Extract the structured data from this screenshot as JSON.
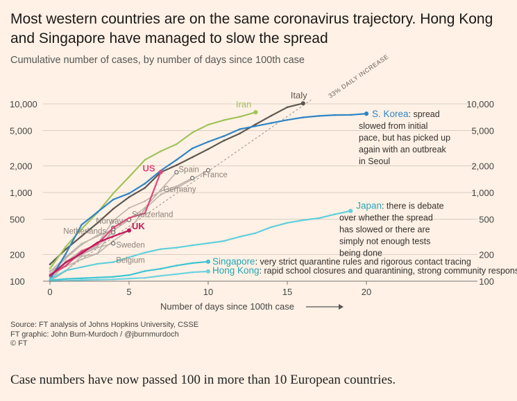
{
  "title": "Most western countries are on the same coronavirus trajectory. Hong Kong and Singapore have managed to slow the spread",
  "subtitle": "Cumulative number of cases, by number of days since 100th case",
  "source": {
    "line1": "Source: FT analysis of Johns Hopkins University, CSSE",
    "line2": "FT graphic: John Burn-Murdoch / @jburnmurdoch",
    "line3": "© FT"
  },
  "caption": "Case numbers have now passed 100 in more than 10 European countries.",
  "colors": {
    "background": "#fff1e5",
    "grid": "#d9cdc2",
    "iran": "#a0c35a",
    "italy": "#5e5650",
    "skorea": "#2d84c6",
    "us": "#e0457b",
    "uk": "#c2185b",
    "japan": "#5fcfdc",
    "singapore": "#3ec4d2",
    "hongkong": "#6fd3df",
    "grey": "#bdb3ab",
    "guide": "#9a8f87"
  },
  "chart_data": {
    "type": "line",
    "title": "Cumulative number of cases, by number of days since 100th case",
    "xlabel": "Number of days since 100th case",
    "ylabel": "",
    "xlim": [
      0,
      27
    ],
    "ylim": [
      100,
      13000
    ],
    "yscale": "log",
    "x_ticks": [
      0,
      5,
      10,
      15,
      20
    ],
    "x_tick_labels": [
      "0",
      "5",
      "10",
      "15",
      "20"
    ],
    "y_ticks": [
      100,
      200,
      500,
      1000,
      2000,
      5000,
      10000
    ],
    "y_tick_labels": [
      "100",
      "200",
      "500",
      "1,000",
      "2,000",
      "5,000",
      "10,000"
    ],
    "guide": {
      "label": "33% DAILY INCREASE",
      "rate": 1.33,
      "x": [
        0,
        16.5
      ]
    },
    "series": [
      {
        "name": "Italy",
        "key": "italy",
        "label": "Italy",
        "highlight": true,
        "x": [
          0,
          1,
          2,
          3,
          4,
          5,
          6,
          7,
          8,
          9,
          10,
          11,
          12,
          13,
          14,
          15,
          16
        ],
        "values": [
          155,
          229,
          322,
          453,
          655,
          888,
          1128,
          1694,
          2036,
          2502,
          3089,
          3858,
          4636,
          5883,
          7375,
          9172,
          10149
        ]
      },
      {
        "name": "Iran",
        "key": "iran",
        "label": "Iran",
        "highlight": true,
        "x": [
          0,
          1,
          2,
          3,
          4,
          5,
          6,
          7,
          8,
          9,
          10,
          11,
          12,
          13
        ],
        "values": [
          139,
          245,
          388,
          593,
          978,
          1501,
          2336,
          2922,
          3513,
          4747,
          5823,
          6566,
          7161,
          8042
        ]
      },
      {
        "name": "S. Korea",
        "key": "skorea",
        "label": "S. Korea",
        "highlight": true,
        "note": ": spread slowed from initial pace, but has picked up again with an outbreak in Seoul",
        "x": [
          0,
          1,
          2,
          3,
          4,
          5,
          6,
          7,
          8,
          9,
          10,
          11,
          12,
          13,
          14,
          15,
          16,
          17,
          18,
          19,
          20
        ],
        "values": [
          104,
          204,
          433,
          602,
          833,
          977,
          1261,
          1766,
          2337,
          3150,
          3736,
          4335,
          5186,
          5621,
          6088,
          6593,
          7041,
          7314,
          7478,
          7513,
          7755
        ]
      },
      {
        "name": "US",
        "key": "us",
        "label": "US",
        "highlight": true,
        "x": [
          0,
          1,
          2,
          3,
          4,
          5,
          6,
          7
        ],
        "values": [
          118,
          149,
          217,
          262,
          402,
          518,
          583,
          1700
        ]
      },
      {
        "name": "UK",
        "key": "uk",
        "label": "UK",
        "highlight": true,
        "x": [
          0,
          1,
          2,
          3,
          4,
          5
        ],
        "values": [
          115,
          163,
          206,
          273,
          321,
          373
        ]
      },
      {
        "name": "Japan",
        "key": "japan",
        "label": "Japan",
        "highlight": true,
        "note": ": there is debate over whether the spread has slowed or there are simply not enough tests being done",
        "x": [
          0,
          1,
          2,
          3,
          4,
          5,
          6,
          7,
          8,
          9,
          10,
          11,
          12,
          13,
          14,
          15,
          16,
          17,
          18,
          19
        ],
        "values": [
          105,
          132,
          144,
          157,
          164,
          186,
          210,
          230,
          239,
          254,
          268,
          284,
          317,
          349,
          408,
          455,
          488,
          514,
          568,
          620
        ]
      },
      {
        "name": "Singapore",
        "key": "singapore",
        "label": "Singapore",
        "highlight": true,
        "note": ": very strict quarantine rules and rigorous contact tracing",
        "x": [
          0,
          1,
          2,
          3,
          4,
          5,
          6,
          7,
          8,
          9,
          10
        ],
        "values": [
          102,
          106,
          108,
          110,
          112,
          117,
          130,
          138,
          150,
          160,
          166
        ]
      },
      {
        "name": "Hong Kong",
        "key": "hongkong",
        "label": "Hong Kong",
        "highlight": true,
        "note": ": rapid school closures and quarantining, strong community response",
        "x": [
          0,
          1,
          2,
          3,
          4,
          5,
          6,
          7,
          8,
          9,
          10
        ],
        "values": [
          100,
          101,
          103,
          104,
          105,
          107,
          109,
          115,
          120,
          126,
          129
        ]
      },
      {
        "name": "Spain",
        "key": "grey",
        "label": "Spain",
        "highlight": false,
        "x": [
          0,
          1,
          2,
          3,
          4,
          5,
          6,
          7,
          8
        ],
        "values": [
          120,
          165,
          222,
          259,
          400,
          500,
          673,
          1073,
          1695
        ]
      },
      {
        "name": "France",
        "key": "grey",
        "label": "France",
        "highlight": false,
        "x": [
          0,
          1,
          2,
          3,
          4,
          5,
          6,
          7,
          8,
          9,
          10
        ],
        "values": [
          100,
          130,
          191,
          204,
          285,
          377,
          653,
          949,
          1126,
          1412,
          1784
        ]
      },
      {
        "name": "Germany",
        "key": "grey",
        "label": "Germany",
        "highlight": false,
        "x": [
          0,
          1,
          2,
          3,
          4,
          5,
          6,
          7,
          8,
          9
        ],
        "values": [
          130,
          159,
          196,
          262,
          482,
          670,
          799,
          1040,
          1176,
          1457
        ]
      },
      {
        "name": "Switzerland",
        "key": "grey",
        "label": "Switzerland",
        "highlight": false,
        "x": [
          0,
          1,
          2,
          3,
          4,
          5
        ],
        "values": [
          120,
          181,
          258,
          330,
          374,
          491
        ]
      },
      {
        "name": "Norway",
        "key": "grey",
        "label": "Norway",
        "highlight": false,
        "x": [
          0,
          1,
          2,
          3,
          4
        ],
        "values": [
          113,
          147,
          176,
          205,
          400
        ]
      },
      {
        "name": "Netherlands",
        "key": "grey",
        "label": "Netherlands",
        "highlight": false,
        "x": [
          0,
          1,
          2,
          3,
          4
        ],
        "values": [
          128,
          188,
          265,
          321,
          382
        ]
      },
      {
        "name": "Sweden",
        "key": "grey",
        "label": "Sweden",
        "highlight": false,
        "x": [
          0,
          1,
          2,
          3,
          4
        ],
        "values": [
          101,
          161,
          203,
          248,
          355
        ]
      },
      {
        "name": "Belgium",
        "key": "grey",
        "label": "Belgium",
        "highlight": false,
        "x": [
          0,
          1,
          2,
          3,
          4
        ],
        "values": [
          109,
          169,
          200,
          239,
          267
        ]
      }
    ]
  }
}
